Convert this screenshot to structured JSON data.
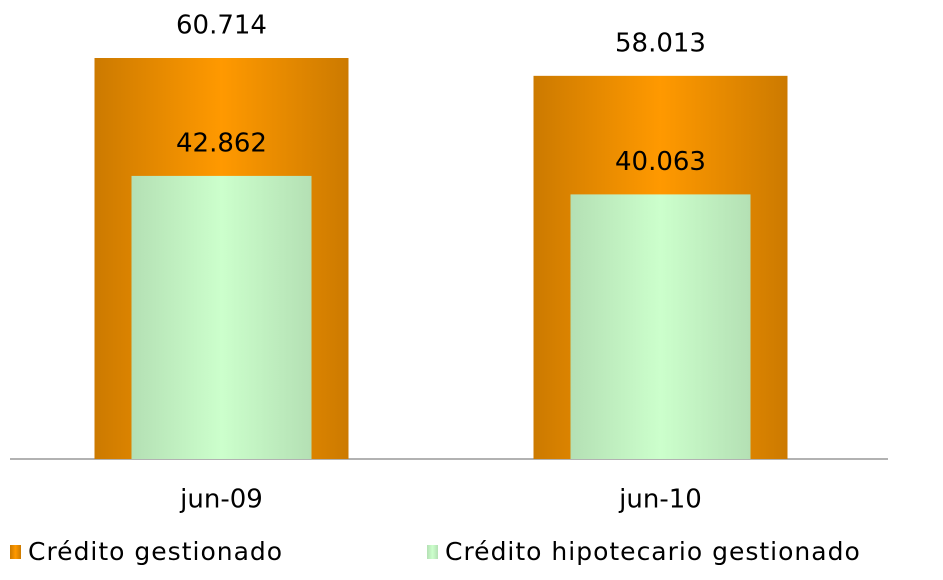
{
  "chart_data": {
    "type": "bar",
    "overlap": true,
    "categories": [
      "jun-09",
      "jun-10"
    ],
    "series": [
      {
        "name": "Crédito gestionado",
        "color": "#ff9900",
        "values": [
          60714,
          58013
        ],
        "value_labels": [
          "60.714",
          "58.013"
        ]
      },
      {
        "name": "Crédito hipotecario gestionado",
        "color": "#ccffcc",
        "values": [
          42862,
          40063
        ],
        "value_labels": [
          "42.862",
          "40.063"
        ]
      }
    ]
  }
}
